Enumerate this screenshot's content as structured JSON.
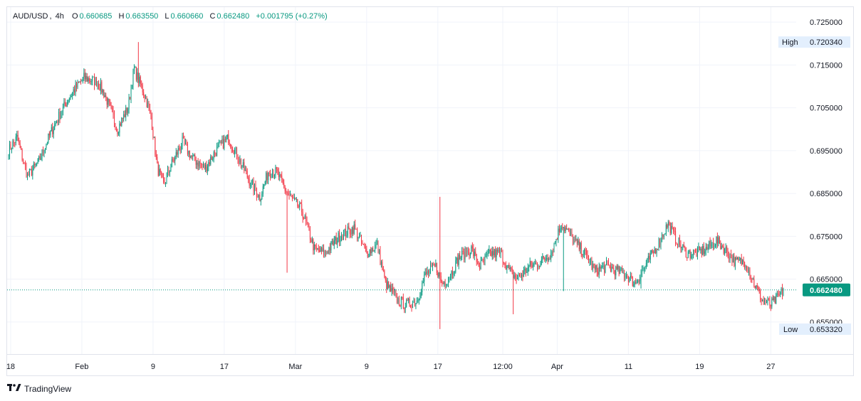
{
  "legend": {
    "symbol": "AUD/USD",
    "interval": "4h",
    "open_label": "O",
    "open": "0.660685",
    "high_label": "H",
    "high": "0.663550",
    "low_label": "L",
    "low": "0.660660",
    "close_label": "C",
    "close": "0.662480",
    "change": "+0.001795 (+0.27%)"
  },
  "markers": {
    "high_label": "High",
    "high_value": "0.720340",
    "low_label": "Low",
    "low_value": "0.653320",
    "current_value": "0.662480"
  },
  "footer": {
    "brand": "TradingView",
    "logo": "tradingview-logo-icon"
  },
  "colors": {
    "up": "#089981",
    "down": "#f23645",
    "grid": "#f0f3fa",
    "current": "#089981"
  },
  "chart_data": {
    "type": "candlestick",
    "ylim": [
      0.6475,
      0.7285
    ],
    "y_ticks": [
      0.655,
      0.665,
      0.675,
      0.685,
      0.695,
      0.705,
      0.715,
      0.725
    ],
    "y_tick_labels": [
      "0.655000",
      "0.665000",
      "0.675000",
      "0.685000",
      "0.695000",
      "0.705000",
      "0.715000",
      "0.725000"
    ],
    "x_ticks": [
      {
        "label": "18",
        "index": 2
      },
      {
        "label": "Feb",
        "index": 70
      },
      {
        "label": "9",
        "index": 138
      },
      {
        "label": "17",
        "index": 206
      },
      {
        "label": "Mar",
        "index": 274
      },
      {
        "label": "9",
        "index": 342
      },
      {
        "label": "17",
        "index": 410
      },
      {
        "label": "12:00",
        "index": 472
      },
      {
        "label": "Apr",
        "index": 524
      },
      {
        "label": "11",
        "index": 592
      },
      {
        "label": "19",
        "index": 660
      },
      {
        "label": "27",
        "index": 728
      }
    ],
    "bar_count": 741,
    "high": 0.72034,
    "low": 0.65332,
    "last": 0.66248,
    "anchors": [
      [
        0,
        0.695
      ],
      [
        8,
        0.698
      ],
      [
        18,
        0.689
      ],
      [
        28,
        0.692
      ],
      [
        40,
        0.699
      ],
      [
        50,
        0.704
      ],
      [
        62,
        0.709
      ],
      [
        72,
        0.712
      ],
      [
        85,
        0.711
      ],
      [
        92,
        0.708
      ],
      [
        104,
        0.7
      ],
      [
        114,
        0.705
      ],
      [
        120,
        0.714
      ],
      [
        130,
        0.708
      ],
      [
        136,
        0.703
      ],
      [
        142,
        0.691
      ],
      [
        148,
        0.687
      ],
      [
        156,
        0.692
      ],
      [
        166,
        0.697
      ],
      [
        176,
        0.693
      ],
      [
        188,
        0.691
      ],
      [
        198,
        0.695
      ],
      [
        210,
        0.698
      ],
      [
        220,
        0.693
      ],
      [
        230,
        0.688
      ],
      [
        240,
        0.684
      ],
      [
        248,
        0.69
      ],
      [
        256,
        0.69
      ],
      [
        266,
        0.685
      ],
      [
        280,
        0.681
      ],
      [
        292,
        0.672
      ],
      [
        302,
        0.671
      ],
      [
        316,
        0.675
      ],
      [
        330,
        0.677
      ],
      [
        342,
        0.671
      ],
      [
        352,
        0.673
      ],
      [
        360,
        0.664
      ],
      [
        372,
        0.66
      ],
      [
        380,
        0.659
      ],
      [
        390,
        0.66
      ],
      [
        398,
        0.666
      ],
      [
        408,
        0.668
      ],
      [
        414,
        0.664
      ],
      [
        420,
        0.665
      ],
      [
        430,
        0.67
      ],
      [
        442,
        0.672
      ],
      [
        450,
        0.668
      ],
      [
        460,
        0.671
      ],
      [
        470,
        0.671
      ],
      [
        478,
        0.667
      ],
      [
        486,
        0.665
      ],
      [
        498,
        0.668
      ],
      [
        508,
        0.669
      ],
      [
        518,
        0.671
      ],
      [
        528,
        0.678
      ],
      [
        540,
        0.674
      ],
      [
        550,
        0.671
      ],
      [
        560,
        0.667
      ],
      [
        572,
        0.668
      ],
      [
        580,
        0.667
      ],
      [
        590,
        0.666
      ],
      [
        598,
        0.664
      ],
      [
        608,
        0.668
      ],
      [
        620,
        0.673
      ],
      [
        630,
        0.678
      ],
      [
        638,
        0.674
      ],
      [
        648,
        0.671
      ],
      [
        656,
        0.671
      ],
      [
        666,
        0.672
      ],
      [
        676,
        0.674
      ],
      [
        684,
        0.672
      ],
      [
        694,
        0.669
      ],
      [
        704,
        0.669
      ],
      [
        712,
        0.664
      ],
      [
        720,
        0.66
      ],
      [
        728,
        0.659
      ],
      [
        734,
        0.6605
      ],
      [
        740,
        0.66248
      ]
    ]
  }
}
